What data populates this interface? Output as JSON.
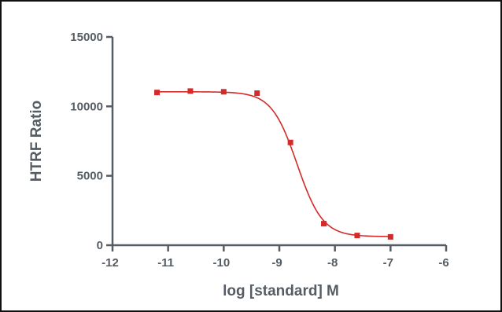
{
  "chart_data": {
    "type": "scatter",
    "title": "",
    "xlabel": "log [standard] M",
    "ylabel": "HTRF Ratio",
    "xlim": [
      -12,
      -6
    ],
    "ylim": [
      0,
      15000
    ],
    "x_ticks": [
      -12,
      -11,
      -10,
      -9,
      -8,
      -7,
      -6
    ],
    "y_ticks": [
      0,
      5000,
      10000,
      15000
    ],
    "x_tick_labels": [
      "-12",
      "-11",
      "-10",
      "-9",
      "-8",
      "-7",
      "-6"
    ],
    "y_tick_labels": [
      "0",
      "5000",
      "10000",
      "15000"
    ],
    "grid": false,
    "legend": "none",
    "color": "#d42a2a",
    "series": [
      {
        "x": [
          -11.2,
          -10.6,
          -10.0,
          -9.4,
          -8.8,
          -8.2,
          -7.6,
          -7.0
        ],
        "y": [
          11000,
          11100,
          11050,
          10950,
          7400,
          1550,
          700,
          600
        ],
        "marker": "square",
        "fit": "sigmoidal dose-response curve"
      }
    ]
  }
}
